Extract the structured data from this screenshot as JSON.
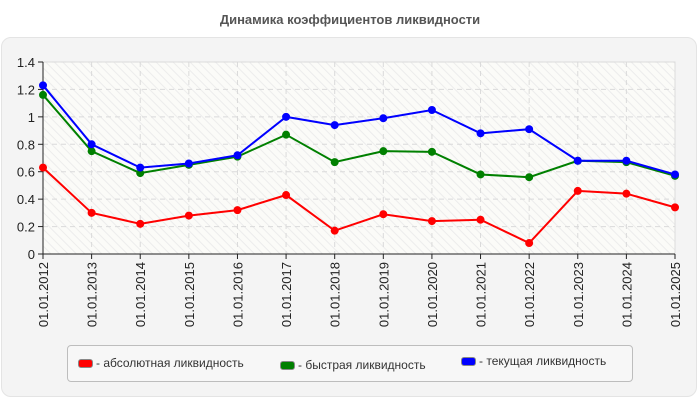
{
  "chart_data": {
    "type": "line",
    "title": "Динамика коэффициентов ликвидности",
    "xlabel": "",
    "ylabel": "",
    "ylim": [
      0,
      1.4
    ],
    "yticks": [
      0,
      0.2,
      0.4,
      0.6,
      0.8,
      1,
      1.2,
      1.4
    ],
    "ytick_labels": [
      "0",
      "0.2",
      "0.4",
      "0.6",
      "0.8",
      "1",
      "1.2",
      "1.4"
    ],
    "grid": true,
    "legend_position": "bottom",
    "categories": [
      "01.01.2012",
      "01.01.2013",
      "01.01.2014",
      "01.01.2015",
      "01.01.2016",
      "01.01.2017",
      "01.01.2018",
      "01.01.2019",
      "01.01.2020",
      "01.01.2021",
      "01.01.2022",
      "01.01.2023",
      "01.01.2024",
      "01.01.2025"
    ],
    "series": [
      {
        "name": "абсолютная ликвидность",
        "color": "#ff0000",
        "values": [
          0.63,
          0.3,
          0.22,
          0.28,
          0.32,
          0.43,
          0.17,
          0.29,
          0.24,
          0.25,
          0.08,
          0.46,
          0.44,
          0.34
        ]
      },
      {
        "name": "быстрая ликвидность",
        "color": "#008000",
        "values": [
          1.16,
          0.75,
          0.59,
          0.65,
          0.71,
          0.87,
          0.67,
          0.75,
          0.745,
          0.58,
          0.56,
          0.68,
          0.67,
          0.57
        ]
      },
      {
        "name": "текущая ликвидность",
        "color": "#0000ff",
        "values": [
          1.23,
          0.8,
          0.63,
          0.66,
          0.72,
          1.0,
          0.94,
          0.99,
          1.05,
          0.88,
          0.91,
          0.68,
          0.68,
          0.58
        ]
      }
    ]
  },
  "legend": {
    "items": [
      {
        "label": "- абсолютная ликвидность",
        "color": "#ff0000"
      },
      {
        "label": "- быстрая ликвидность",
        "color": "#008000"
      },
      {
        "label": "- текущая ликвидность",
        "color": "#0000ff"
      }
    ]
  }
}
